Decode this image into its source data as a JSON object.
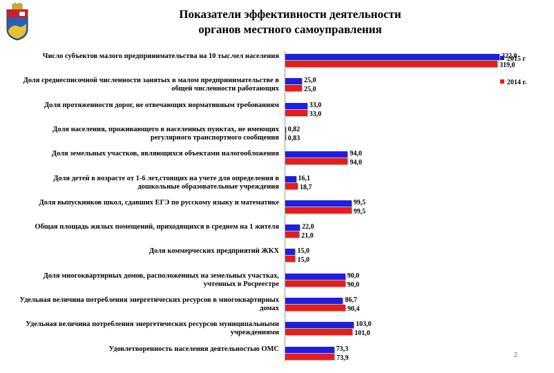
{
  "slide": {
    "title_line1": "Показатели  эффективности деятельности",
    "title_line2": "органов местного самоуправления",
    "page_number": "2"
  },
  "chart_data": {
    "type": "bar",
    "orientation": "horizontal",
    "categories": [
      "Число субъектов малого предпринимательства на 10 тыс.чел населения",
      "Доля среднесписочной численности занятых в малом предпринимательстве в общей численности работающих",
      "Доля протяженности дорог, не отвечающих нормативным требованиям",
      "Доля населения, проживающего в населенных пунктах, не имеющих регулярного транспортного сообщения",
      "Доля земельных участков, являющихся объектами налогообложения",
      "Доля детей в возрасте от 1-6 лет,стоящих на учете для определения в дошкольные образовательные учреждения",
      "Доля выпускников школ, сдавших ЕГЭ по русскому языку и математике",
      "Общая площадь жилых помещений, приходящихся в среднем на 1 жителя",
      "Доля коммерческих предприятий ЖКХ",
      "Доля многоквартирных домов, расположенных на земельных участках, учтенных в Росреестре",
      "Удельная величина потребления энергетических ресурсов в многоквартирных домах",
      "Удельная величина потребления энергетических ресурсов муниципальными учреждениями",
      "Удовлетворенность населения деятельностью ОМС"
    ],
    "series": [
      {
        "name": "2015 г",
        "color": "#1f1fe0",
        "values": [
          322.0,
          25.0,
          33.0,
          0.82,
          94.0,
          16.1,
          99.5,
          22.0,
          15.0,
          90.0,
          86.7,
          103.0,
          73.3
        ],
        "labels": [
          "322,0",
          "25,0",
          "33,0",
          "0,82",
          "94,0",
          "16,1",
          "99,5",
          "22,0",
          "15,0",
          "90,0",
          "86,7",
          "103,0",
          "73,3"
        ]
      },
      {
        "name": "2014 г.",
        "color": "#e81c1c",
        "values": [
          319.0,
          25.0,
          33.0,
          0.83,
          94.0,
          18.7,
          99.5,
          21.0,
          15.0,
          90.0,
          90.4,
          101.0,
          73.9
        ],
        "labels": [
          "319,0",
          "25,0",
          "33,0",
          "0,83",
          "94,0",
          "18,7",
          "99,5",
          "21,0",
          "15,0",
          "90,0",
          "90,4",
          "101,0",
          "73,9"
        ]
      }
    ],
    "legend_position": "right",
    "grid": false
  }
}
